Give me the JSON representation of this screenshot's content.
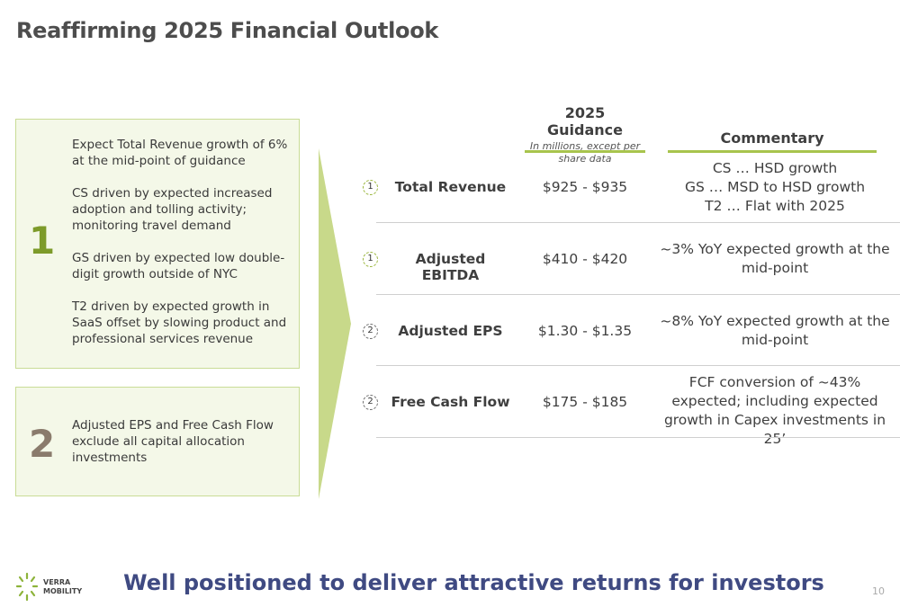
{
  "title": "Reaffirming 2025 Financial Outlook",
  "box1": {
    "number": "1",
    "paragraphs": [
      "Expect Total Revenue growth of 6% at the mid-point of guidance",
      "CS driven by expected increased adoption and tolling activity; monitoring travel demand",
      "GS driven by expected low double-digit growth outside of NYC",
      "T2 driven by expected growth in SaaS offset by slowing product and professional services revenue"
    ]
  },
  "box2": {
    "number": "2",
    "paragraphs": [
      "Adjusted EPS and Free Cash Flow exclude all capital allocation investments"
    ]
  },
  "guidance_header": {
    "title": "2025 Guidance",
    "subtitle": "In millions, except per share data"
  },
  "commentary_header": "Commentary",
  "rows": [
    {
      "badge": "1",
      "metric": "Total Revenue",
      "range": "$925 - $935",
      "commentary": [
        "CS … HSD growth",
        "GS … MSD to HSD growth",
        "T2 … Flat with 2025"
      ]
    },
    {
      "badge": "1",
      "metric": "Adjusted EBITDA",
      "range": "$410 - $420",
      "commentary": [
        "~3% YoY expected growth at the mid-point"
      ]
    },
    {
      "badge": "2",
      "metric": "Adjusted EPS",
      "range": "$1.30 - $1.35",
      "commentary": [
        "~8% YoY expected growth at the mid-point"
      ]
    },
    {
      "badge": "2",
      "metric": "Free Cash Flow",
      "range": "$175 - $185",
      "commentary": [
        "FCF conversion of ~43% expected; including expected growth in Capex investments in 25’"
      ]
    }
  ],
  "tagline": "Well positioned to deliver attractive returns for investors",
  "logo": {
    "line1": "VERRA",
    "line2": "MOBILITY"
  },
  "page_number": "10",
  "colors": {
    "accent_green": "#a8c44d",
    "number_green": "#7d9b2a",
    "number_taupe": "#8a7b6c",
    "tagline_blue": "#3f4a82"
  }
}
